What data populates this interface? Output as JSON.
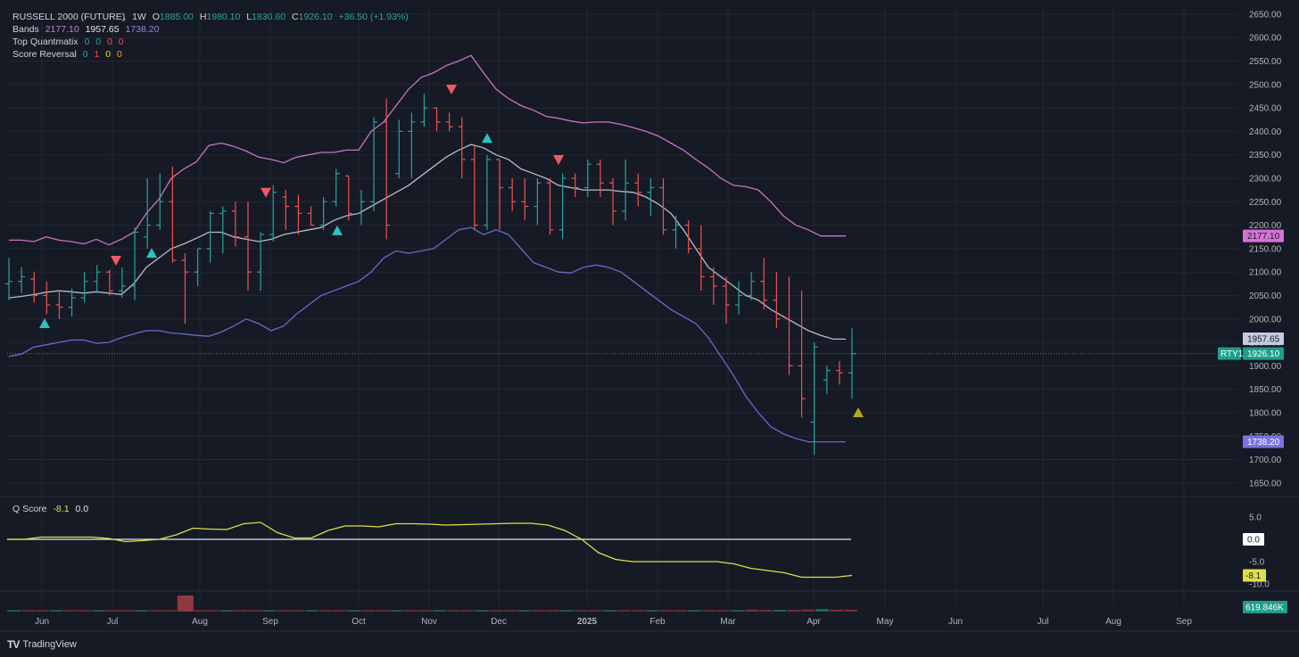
{
  "legend": {
    "symbol": "RUSSELL 2000 (FUTURE)",
    "interval": "1W",
    "o_label": "O",
    "o_value": "1885.00",
    "h_label": "H",
    "h_value": "1980.10",
    "l_label": "L",
    "l_value": "1830.60",
    "c_label": "C",
    "c_value": "1926.10",
    "change": "+36.50 (+1.93%)",
    "bands_label": "Bands",
    "bands_upper": "2177.10",
    "bands_mid": "1957.65",
    "bands_lower": "1738.20",
    "tq_label": "Top Quantmatix",
    "tq_values": [
      "0",
      "0",
      "0",
      "0"
    ],
    "sr_label": "Score Reversal",
    "sr_values": [
      "0",
      "1",
      "0",
      "0"
    ],
    "q_label": "Q Score",
    "q_value": "-8.1",
    "q_value2": "0.0"
  },
  "brand": {
    "name": "TradingView",
    "logo": "TV"
  },
  "colors": {
    "up": "#26a69a",
    "down": "#ef5350",
    "upper_band": "#c774c9",
    "mid_band": "#b7bccc",
    "lower_band": "#6f68c8",
    "qscore": "#dede4a",
    "background": "#161a25",
    "grid": "#232733",
    "last_price": "#1e9e8a"
  },
  "chart_data": {
    "type": "ohlc",
    "y_ticks": [
      1650,
      1700,
      1750,
      1800,
      1850,
      1900,
      1950,
      2000,
      2050,
      2100,
      2150,
      2200,
      2250,
      2300,
      2350,
      2400,
      2450,
      2500,
      2550,
      2600,
      2650
    ],
    "x_labels": [
      "Jun",
      "Jul",
      "Aug",
      "Sep",
      "Oct",
      "Nov",
      "Dec",
      "2025",
      "Feb",
      "Mar",
      "Apr",
      "May",
      "Jun",
      "Jul",
      "Aug",
      "Sep"
    ],
    "bars": [
      {
        "o": 2075,
        "h": 2130,
        "l": 2040,
        "c": 2080
      },
      {
        "o": 2080,
        "h": 2110,
        "l": 2055,
        "c": 2090
      },
      {
        "o": 2085,
        "h": 2100,
        "l": 2035,
        "c": 2050
      },
      {
        "o": 2050,
        "h": 2080,
        "l": 2010,
        "c": 2030
      },
      {
        "o": 2030,
        "h": 2060,
        "l": 2000,
        "c": 2025
      },
      {
        "o": 2025,
        "h": 2065,
        "l": 2005,
        "c": 2045
      },
      {
        "o": 2045,
        "h": 2100,
        "l": 2035,
        "c": 2080
      },
      {
        "o": 2080,
        "h": 2115,
        "l": 2055,
        "c": 2100
      },
      {
        "o": 2100,
        "h": 2105,
        "l": 2050,
        "c": 2060
      },
      {
        "o": 2060,
        "h": 2110,
        "l": 2045,
        "c": 2070
      },
      {
        "o": 2070,
        "h": 2195,
        "l": 2040,
        "c": 2185
      },
      {
        "o": 2175,
        "h": 2300,
        "l": 2150,
        "c": 2200
      },
      {
        "o": 2200,
        "h": 2310,
        "l": 2190,
        "c": 2250
      },
      {
        "o": 2250,
        "h": 2325,
        "l": 2120,
        "c": 2125
      },
      {
        "o": 2125,
        "h": 2140,
        "l": 1990,
        "c": 2100
      },
      {
        "o": 2100,
        "h": 2150,
        "l": 2070,
        "c": 2150
      },
      {
        "o": 2150,
        "h": 2230,
        "l": 2120,
        "c": 2225
      },
      {
        "o": 2225,
        "h": 2240,
        "l": 2140,
        "c": 2230
      },
      {
        "o": 2230,
        "h": 2250,
        "l": 2155,
        "c": 2175
      },
      {
        "o": 2175,
        "h": 2250,
        "l": 2060,
        "c": 2100
      },
      {
        "o": 2100,
        "h": 2185,
        "l": 2060,
        "c": 2180
      },
      {
        "o": 2180,
        "h": 2285,
        "l": 2165,
        "c": 2270
      },
      {
        "o": 2260,
        "h": 2275,
        "l": 2190,
        "c": 2240
      },
      {
        "o": 2240,
        "h": 2265,
        "l": 2180,
        "c": 2225
      },
      {
        "o": 2225,
        "h": 2240,
        "l": 2200,
        "c": 2200
      },
      {
        "o": 2200,
        "h": 2260,
        "l": 2190,
        "c": 2250
      },
      {
        "o": 2250,
        "h": 2320,
        "l": 2240,
        "c": 2310
      },
      {
        "o": 2305,
        "h": 2305,
        "l": 2210,
        "c": 2225
      },
      {
        "o": 2225,
        "h": 2275,
        "l": 2200,
        "c": 2250
      },
      {
        "o": 2250,
        "h": 2430,
        "l": 2230,
        "c": 2420
      },
      {
        "o": 2420,
        "h": 2470,
        "l": 2170,
        "c": 2200
      },
      {
        "o": 2310,
        "h": 2425,
        "l": 2300,
        "c": 2400
      },
      {
        "o": 2400,
        "h": 2440,
        "l": 2300,
        "c": 2420
      },
      {
        "o": 2420,
        "h": 2480,
        "l": 2410,
        "c": 2450
      },
      {
        "o": 2450,
        "h": 2450,
        "l": 2400,
        "c": 2420
      },
      {
        "o": 2420,
        "h": 2440,
        "l": 2400,
        "c": 2410
      },
      {
        "o": 2410,
        "h": 2430,
        "l": 2300,
        "c": 2340
      },
      {
        "o": 2340,
        "h": 2370,
        "l": 2190,
        "c": 2200
      },
      {
        "o": 2200,
        "h": 2350,
        "l": 2190,
        "c": 2340
      },
      {
        "o": 2340,
        "h": 2340,
        "l": 2190,
        "c": 2280
      },
      {
        "o": 2280,
        "h": 2300,
        "l": 2230,
        "c": 2250
      },
      {
        "o": 2250,
        "h": 2300,
        "l": 2210,
        "c": 2240
      },
      {
        "o": 2240,
        "h": 2300,
        "l": 2200,
        "c": 2290
      },
      {
        "o": 2290,
        "h": 2300,
        "l": 2180,
        "c": 2190
      },
      {
        "o": 2190,
        "h": 2310,
        "l": 2170,
        "c": 2300
      },
      {
        "o": 2300,
        "h": 2310,
        "l": 2260,
        "c": 2280
      },
      {
        "o": 2280,
        "h": 2340,
        "l": 2260,
        "c": 2330
      },
      {
        "o": 2330,
        "h": 2340,
        "l": 2260,
        "c": 2290
      },
      {
        "o": 2290,
        "h": 2300,
        "l": 2200,
        "c": 2230
      },
      {
        "o": 2230,
        "h": 2340,
        "l": 2210,
        "c": 2290
      },
      {
        "o": 2290,
        "h": 2310,
        "l": 2240,
        "c": 2270
      },
      {
        "o": 2270,
        "h": 2300,
        "l": 2220,
        "c": 2280
      },
      {
        "o": 2280,
        "h": 2300,
        "l": 2180,
        "c": 2190
      },
      {
        "o": 2190,
        "h": 2220,
        "l": 2150,
        "c": 2200
      },
      {
        "o": 2200,
        "h": 2210,
        "l": 2140,
        "c": 2150
      },
      {
        "o": 2150,
        "h": 2200,
        "l": 2060,
        "c": 2090
      },
      {
        "o": 2090,
        "h": 2110,
        "l": 2030,
        "c": 2070
      },
      {
        "o": 2070,
        "h": 2090,
        "l": 1990,
        "c": 2030
      },
      {
        "o": 2030,
        "h": 2080,
        "l": 2010,
        "c": 2050
      },
      {
        "o": 2050,
        "h": 2100,
        "l": 2040,
        "c": 2080
      },
      {
        "o": 2080,
        "h": 2130,
        "l": 2020,
        "c": 2040
      },
      {
        "o": 2040,
        "h": 2100,
        "l": 1980,
        "c": 2000
      },
      {
        "o": 2000,
        "h": 2090,
        "l": 1880,
        "c": 1900
      },
      {
        "o": 1900,
        "h": 2060,
        "l": 1790,
        "c": 1830
      },
      {
        "o": 1780,
        "h": 1950,
        "l": 1710,
        "c": 1940
      },
      {
        "o": 1870,
        "h": 1900,
        "l": 1840,
        "c": 1890
      },
      {
        "o": 1890,
        "h": 1910,
        "l": 1860,
        "c": 1885
      },
      {
        "o": 1885,
        "h": 1980,
        "l": 1830,
        "c": 1926
      }
    ],
    "upper_band": [
      2168,
      2168,
      2165,
      2175,
      2168,
      2165,
      2160,
      2170,
      2158,
      2170,
      2185,
      2225,
      2255,
      2300,
      2320,
      2335,
      2370,
      2375,
      2368,
      2358,
      2345,
      2340,
      2333,
      2345,
      2350,
      2355,
      2355,
      2360,
      2360,
      2400,
      2420,
      2455,
      2490,
      2515,
      2525,
      2540,
      2550,
      2562,
      2525,
      2490,
      2470,
      2455,
      2445,
      2432,
      2428,
      2422,
      2418,
      2420,
      2420,
      2415,
      2408,
      2400,
      2390,
      2375,
      2360,
      2340,
      2322,
      2300,
      2285,
      2282,
      2275,
      2250,
      2220,
      2200,
      2190,
      2177,
      2177,
      2177
    ],
    "mid_band": [
      2045,
      2048,
      2052,
      2057,
      2060,
      2058,
      2055,
      2058,
      2055,
      2052,
      2075,
      2110,
      2130,
      2150,
      2160,
      2172,
      2185,
      2185,
      2175,
      2170,
      2165,
      2170,
      2180,
      2185,
      2190,
      2195,
      2210,
      2220,
      2225,
      2240,
      2255,
      2270,
      2285,
      2305,
      2325,
      2345,
      2360,
      2372,
      2365,
      2350,
      2340,
      2320,
      2310,
      2300,
      2285,
      2280,
      2275,
      2275,
      2275,
      2272,
      2270,
      2260,
      2245,
      2225,
      2190,
      2150,
      2110,
      2090,
      2070,
      2050,
      2040,
      2020,
      2005,
      1990,
      1975,
      1965,
      1957,
      1957
    ],
    "lower_band": [
      1920,
      1925,
      1940,
      1945,
      1950,
      1955,
      1955,
      1948,
      1950,
      1960,
      1968,
      1975,
      1975,
      1970,
      1968,
      1965,
      1963,
      1972,
      1985,
      2000,
      1990,
      1975,
      1985,
      2010,
      2030,
      2050,
      2060,
      2070,
      2080,
      2100,
      2130,
      2145,
      2140,
      2145,
      2150,
      2170,
      2190,
      2195,
      2180,
      2190,
      2180,
      2150,
      2120,
      2110,
      2100,
      2098,
      2110,
      2115,
      2110,
      2100,
      2080,
      2060,
      2040,
      2020,
      2005,
      1990,
      1960,
      1920,
      1880,
      1835,
      1800,
      1770,
      1755,
      1745,
      1738,
      1738,
      1738,
      1738
    ],
    "signals": [
      {
        "type": "up",
        "bar": 5,
        "price": 1990,
        "color": "#2ac3c0"
      },
      {
        "type": "down",
        "bar": 15,
        "price": 2125,
        "color": "#f25764"
      },
      {
        "type": "up",
        "bar": 20,
        "price": 2140,
        "color": "#2ac3c0"
      },
      {
        "type": "down",
        "bar": 36,
        "price": 2270,
        "color": "#f25764"
      },
      {
        "type": "up",
        "bar": 46,
        "price": 2188,
        "color": "#2ac3c0"
      },
      {
        "type": "down",
        "bar": 62,
        "price": 2490,
        "color": "#f25764"
      },
      {
        "type": "up",
        "bar": 67,
        "price": 2385,
        "color": "#2ac3c0"
      },
      {
        "type": "down",
        "bar": 77,
        "price": 2340,
        "color": "#f25764"
      },
      {
        "type": "up",
        "bar": 119,
        "price": 1800,
        "color": "#b5a61e"
      }
    ],
    "last_price_badges": [
      {
        "label": "",
        "value": "2177.10",
        "price": 2177.1,
        "bg": "#d373d8",
        "fg": "#161a25"
      },
      {
        "label": "",
        "value": "1957.65",
        "price": 1957.65,
        "bg": "#c7cbe0",
        "fg": "#161a25"
      },
      {
        "label": "RTY1",
        "value": "1926.10",
        "price": 1926.1,
        "bg": "#1e9e8a",
        "fg": "#ffffff"
      },
      {
        "label": "",
        "value": "1738.20",
        "price": 1738.2,
        "bg": "#7a72e0",
        "fg": "#ffffff"
      }
    ],
    "qscore": {
      "y_ticks": [
        "5.0",
        "0.0",
        "-5.0",
        "-10.0"
      ],
      "values": [
        0,
        0,
        0.5,
        0.5,
        0.5,
        0.5,
        0.2,
        -0.5,
        -0.3,
        0,
        1,
        2.5,
        2.3,
        2.2,
        3.5,
        3.8,
        1.5,
        0.3,
        0.3,
        2,
        3,
        3,
        2.8,
        3.5,
        3.5,
        3.4,
        3.2,
        3.3,
        3.4,
        3.5,
        3.6,
        3.6,
        3.2,
        2,
        0,
        -3,
        -4.5,
        -5,
        -5,
        -5,
        -5,
        -5,
        -5,
        -5.5,
        -6.5,
        -7,
        -7.5,
        -8.5,
        -8.5,
        -8.5,
        -8.1
      ],
      "zero_line": 0,
      "badges": [
        {
          "value": "0.0",
          "bg": "#ffffff",
          "fg": "#161a25"
        },
        {
          "value": "-8.1",
          "bg": "#dede4a",
          "fg": "#161a25"
        }
      ]
    },
    "volume": {
      "badge": "619.846K",
      "values": [
        0.05,
        0.05,
        0.05,
        0.05,
        0.05,
        0.05,
        0.05,
        0.05,
        0.05,
        0.05,
        0.08,
        0.08,
        1.0,
        0.05,
        0.05,
        0.05,
        0.05,
        0.05,
        0.05,
        0.05,
        0.05,
        0.05,
        0.05,
        0.05,
        0.05,
        0.05,
        0.05,
        0.05,
        0.05,
        0.05,
        0.05,
        0.05,
        0.05,
        0.05,
        0.05,
        0.05,
        0.05,
        0.05,
        0.05,
        0.05,
        0.05,
        0.05,
        0.05,
        0.05,
        0.05,
        0.05,
        0.05,
        0.05,
        0.05,
        0.05,
        0.05,
        0.08,
        0.12,
        0.1,
        0.1,
        0.1,
        0.12,
        0.15,
        0.12,
        0.12
      ]
    }
  }
}
